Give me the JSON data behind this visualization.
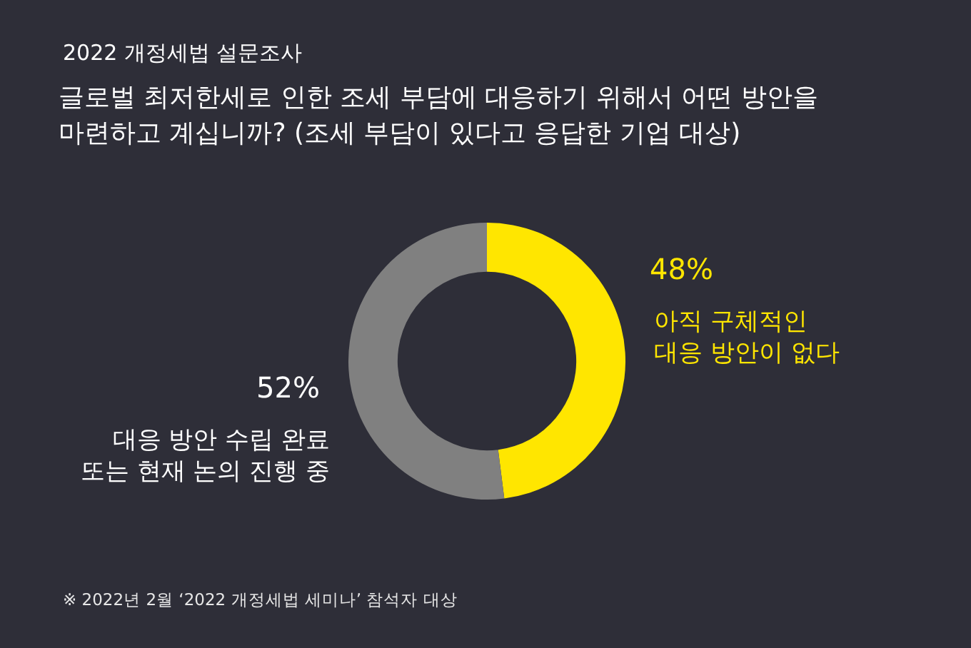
{
  "chart_data": {
    "type": "donut",
    "title": "2022 개정세법 설문조사",
    "subtitle": "글로벌 최저한세로 인한 조세 부담에 대응하기 위해서 어떤 방안을\n마련하고 계십니까? (조세 부담이 있다고 응답한 기업 대상)",
    "categories": [
      "아직 구체적인\n대응 방안이 없다",
      "대응 방안 수립 완료\n또는 현재 논의 진행 중"
    ],
    "values": [
      48,
      52
    ],
    "colors": [
      "#ffe600",
      "#808080"
    ],
    "value_labels": [
      "48%",
      "52%"
    ],
    "annotations": [
      "※ 2022년 2월 ‘2022 개정세법 세미나’ 참석자 대상"
    ]
  }
}
